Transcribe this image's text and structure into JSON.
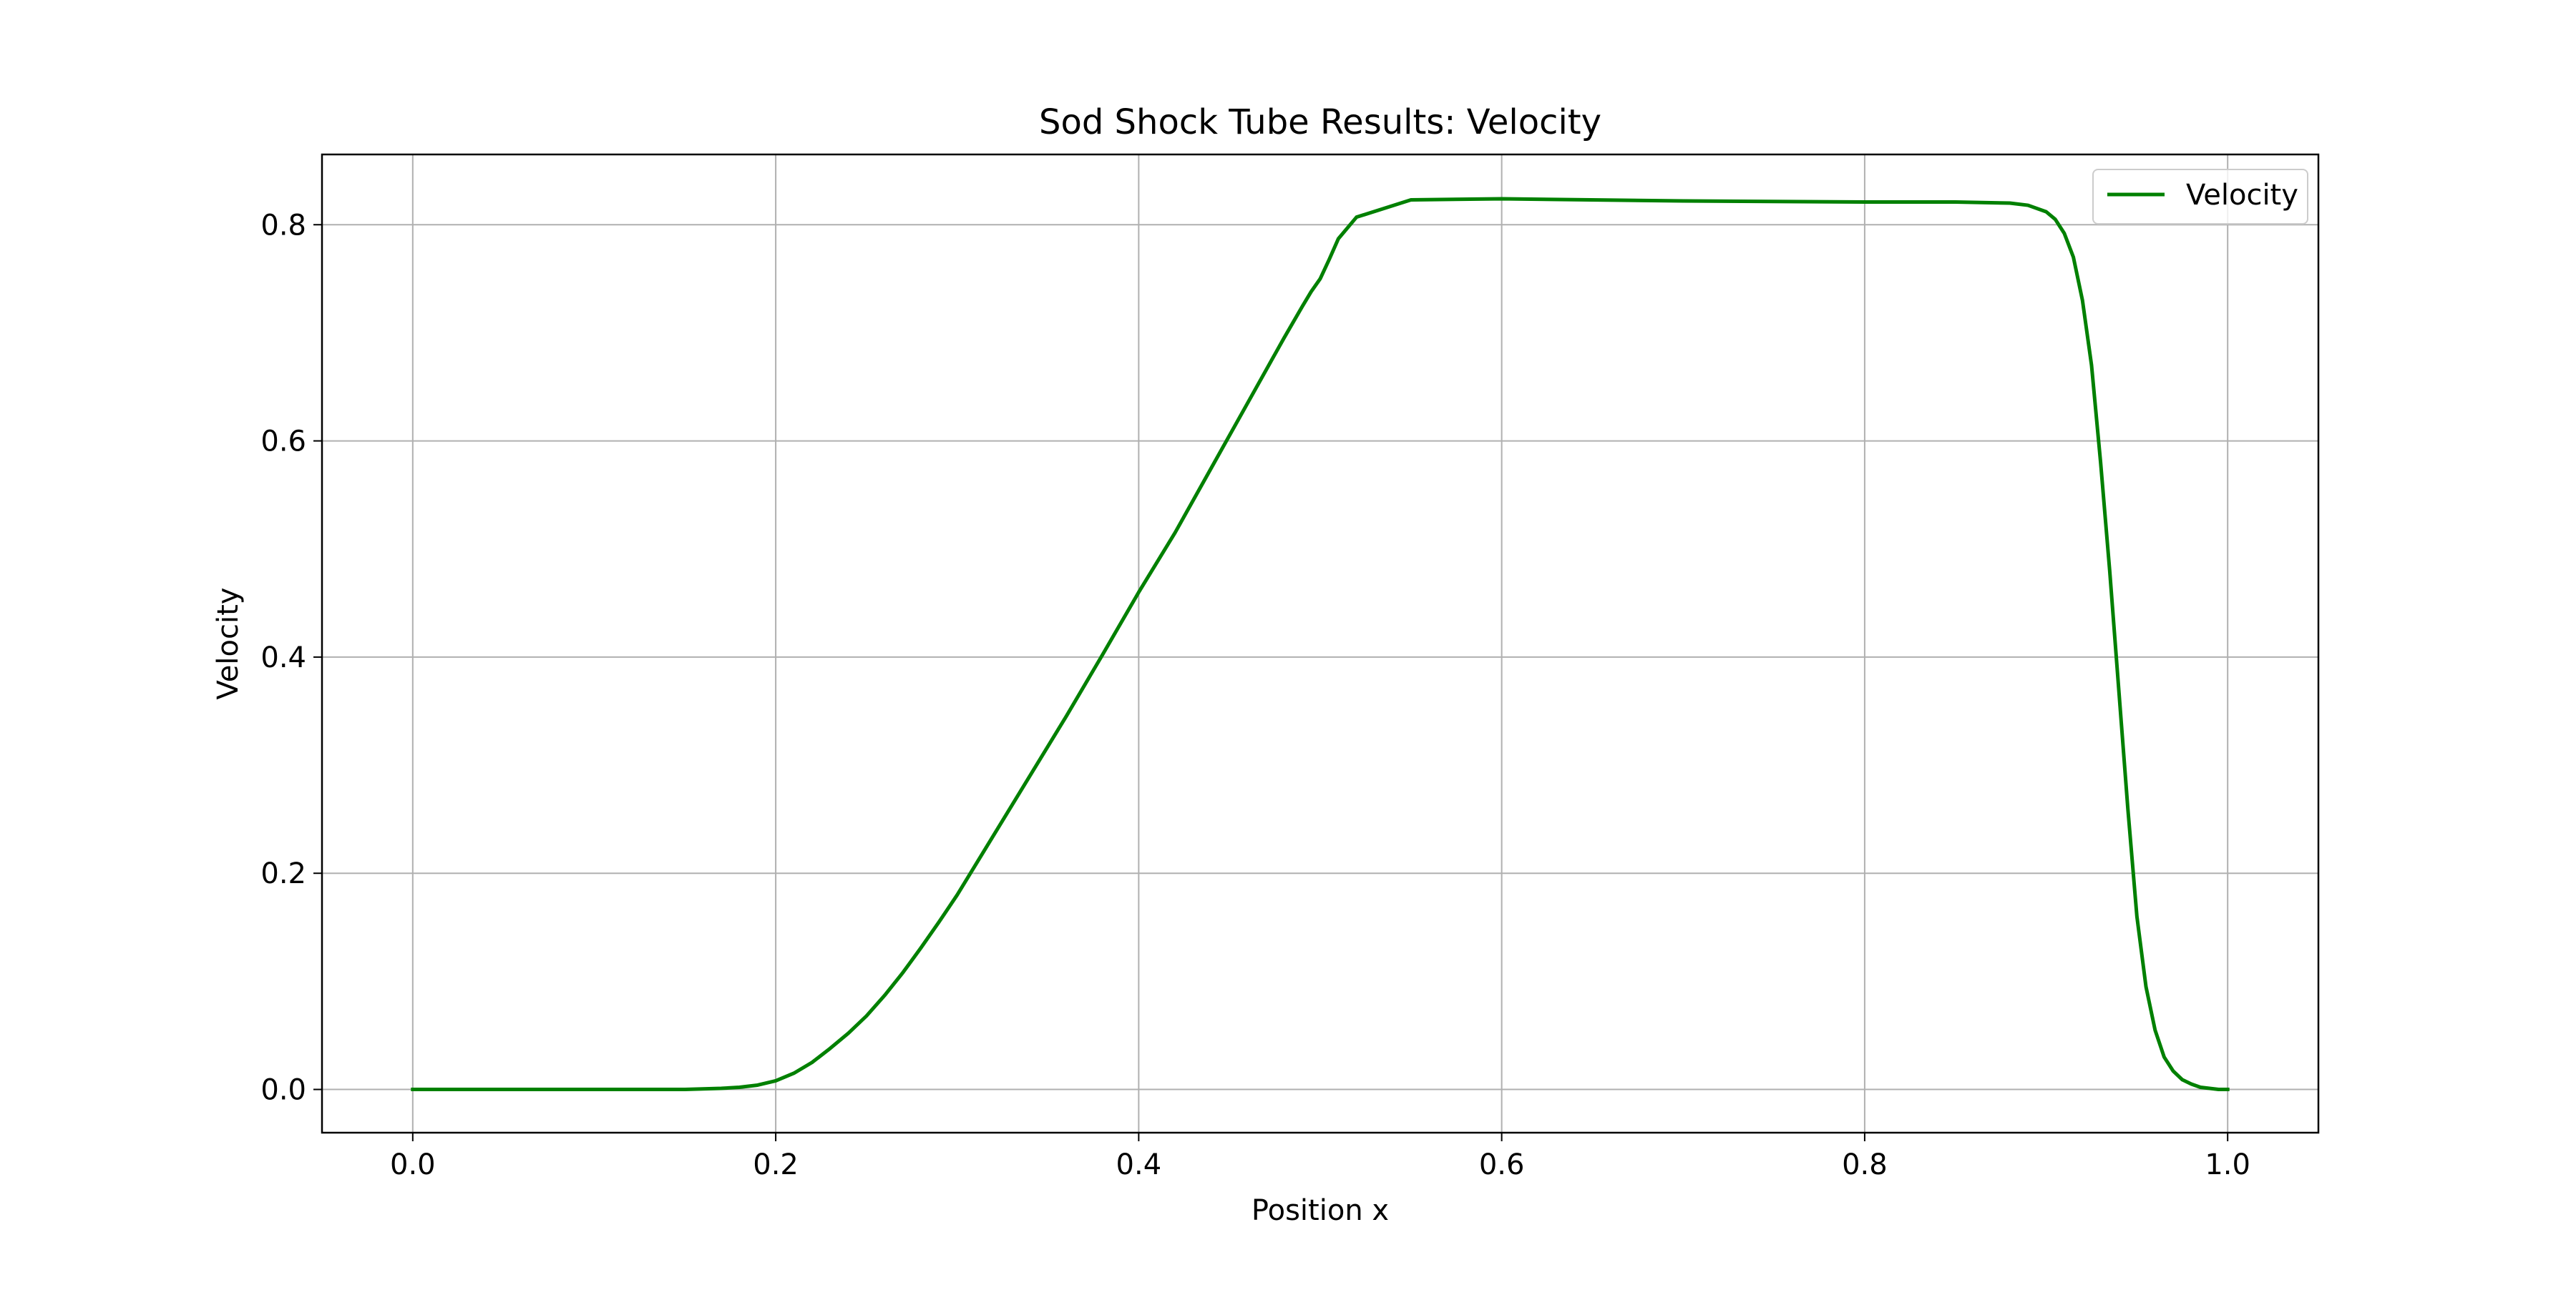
{
  "chart_data": {
    "type": "line",
    "title": "Sod Shock Tube Results: Velocity",
    "xlabel": "Position x",
    "ylabel": "Velocity",
    "xlim": [
      -0.05,
      1.05
    ],
    "ylim": [
      -0.04,
      0.865
    ],
    "x_ticks": [
      0.0,
      0.2,
      0.4,
      0.6,
      0.8,
      1.0
    ],
    "x_tick_labels": [
      "0.0",
      "0.2",
      "0.4",
      "0.6",
      "0.8",
      "1.0"
    ],
    "y_ticks": [
      0.0,
      0.2,
      0.4,
      0.6,
      0.8
    ],
    "y_tick_labels": [
      "0.0",
      "0.2",
      "0.4",
      "0.6",
      "0.8"
    ],
    "grid": true,
    "legend_position": "top-right",
    "series": [
      {
        "name": "Velocity",
        "color": "#008000",
        "x": [
          0.0,
          0.05,
          0.1,
          0.15,
          0.16,
          0.17,
          0.18,
          0.19,
          0.2,
          0.21,
          0.22,
          0.23,
          0.24,
          0.25,
          0.26,
          0.27,
          0.28,
          0.29,
          0.3,
          0.32,
          0.34,
          0.36,
          0.38,
          0.4,
          0.42,
          0.44,
          0.46,
          0.48,
          0.49,
          0.495,
          0.5,
          0.505,
          0.51,
          0.52,
          0.55,
          0.6,
          0.7,
          0.8,
          0.85,
          0.88,
          0.89,
          0.9,
          0.905,
          0.91,
          0.915,
          0.92,
          0.925,
          0.93,
          0.935,
          0.94,
          0.945,
          0.95,
          0.955,
          0.96,
          0.965,
          0.97,
          0.975,
          0.98,
          0.985,
          0.99,
          0.995,
          1.0
        ],
        "y": [
          0.0,
          0.0,
          0.0,
          0.0,
          0.0005,
          0.001,
          0.002,
          0.004,
          0.008,
          0.015,
          0.025,
          0.038,
          0.052,
          0.068,
          0.087,
          0.108,
          0.131,
          0.155,
          0.18,
          0.235,
          0.29,
          0.345,
          0.402,
          0.46,
          0.515,
          0.575,
          0.635,
          0.695,
          0.724,
          0.738,
          0.75,
          0.768,
          0.787,
          0.807,
          0.823,
          0.824,
          0.822,
          0.821,
          0.821,
          0.82,
          0.818,
          0.812,
          0.805,
          0.792,
          0.77,
          0.73,
          0.67,
          0.58,
          0.48,
          0.37,
          0.26,
          0.16,
          0.095,
          0.055,
          0.03,
          0.017,
          0.009,
          0.005,
          0.002,
          0.001,
          0.0,
          0.0
        ]
      }
    ]
  }
}
